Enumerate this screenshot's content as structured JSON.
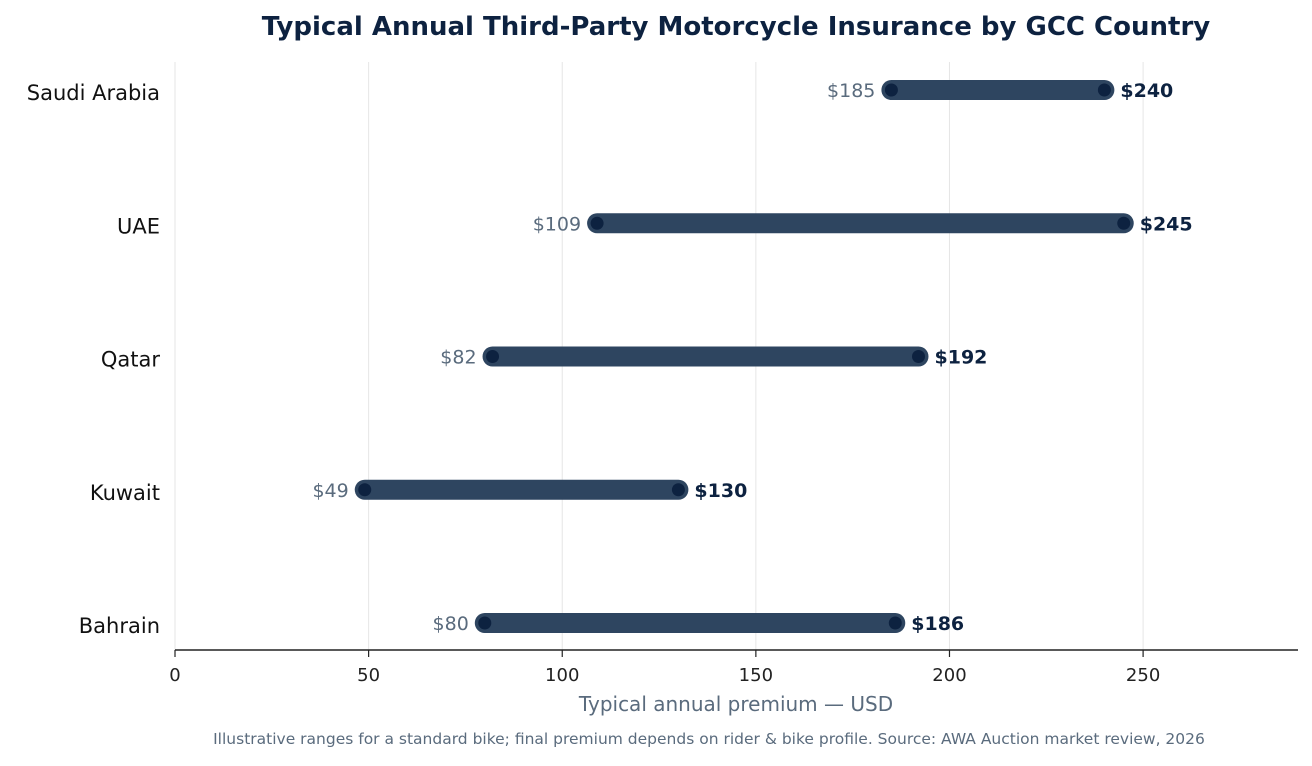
{
  "chart_data": {
    "type": "range-bar",
    "title": "Typical Annual Third-Party Motorcycle Insurance by GCC Country",
    "xlabel": "Typical annual premium — USD",
    "ylabel": "",
    "footnote": "Illustrative ranges for a standard bike; final premium depends on rider & bike profile.  Source: AWA Auction market review, 2026",
    "xlim": [
      0,
      290
    ],
    "xticks": [
      0,
      50,
      100,
      150,
      200,
      250
    ],
    "grid": "vertical",
    "legend": "none",
    "value_prefix": "$",
    "categories": [
      "Saudi Arabia",
      "UAE",
      "Qatar",
      "Kuwait",
      "Bahrain"
    ],
    "low": [
      185,
      109,
      82,
      49,
      80
    ],
    "high": [
      240,
      245,
      192,
      130,
      186
    ],
    "colors": {
      "bar": "#2e4560",
      "dot": "#0d2240",
      "title": "#0d2240",
      "low_label": "#5a6b7d",
      "high_label": "#0d2240",
      "axis_label": "#5a6b7d",
      "grid": "#e6e6e6"
    }
  }
}
